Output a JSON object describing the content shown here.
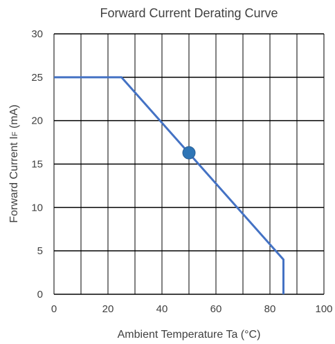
{
  "chart_data": {
    "type": "line",
    "title": "Forward Current Derating Curve",
    "xlabel": "Ambient Temperature Ta (°C)",
    "ylabel": "Forward Current I",
    "ylabel_subscript": "F",
    "ylabel_unit": " (mA)",
    "xlim": [
      0,
      100
    ],
    "ylim": [
      0,
      30
    ],
    "x_ticks": [
      0,
      20,
      40,
      60,
      80,
      100
    ],
    "x_tick_labels": [
      "0",
      "20",
      "40",
      "60",
      "80",
      "100"
    ],
    "y_ticks": [
      0,
      5,
      10,
      15,
      20,
      25,
      30
    ],
    "y_tick_labels": [
      "0",
      "5",
      "10",
      "15",
      "20",
      "25",
      "30"
    ],
    "x_gridlines_every": 10,
    "y_gridlines_every": 5,
    "grid": true,
    "legend": "none",
    "series": [
      {
        "x": [
          0,
          25,
          85,
          85
        ],
        "y": [
          25,
          25,
          4,
          0
        ],
        "color": "#4472c4"
      }
    ],
    "marker": {
      "x": 50,
      "y": 16.3,
      "color": "#2e75b6"
    }
  }
}
